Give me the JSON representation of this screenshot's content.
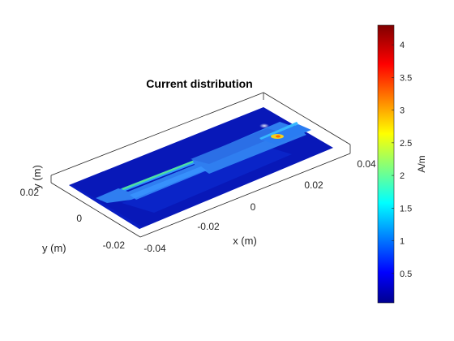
{
  "chart_data": {
    "type": "surface-3d",
    "title": "Current distribution",
    "xlabel": "x (m)",
    "ylabel": "y (m)",
    "x_ticks": [
      "-0.04",
      "-0.02",
      "0",
      "0.02",
      "0.04"
    ],
    "y_ticks": [
      "-0.02",
      "0",
      "0.02"
    ],
    "colorbar": {
      "label": "A/m",
      "colormap": "jet",
      "range": [
        0.05,
        4.3
      ],
      "ticks": [
        "0.5",
        "1",
        "1.5",
        "2",
        "2.5",
        "3",
        "3.5",
        "4"
      ],
      "tick_values": [
        0.5,
        1,
        1.5,
        2,
        2.5,
        3,
        3.5,
        4
      ]
    },
    "values": {
      "ground_plane": 0.1,
      "feed_line": 1.0,
      "narrow_stub": 2.0,
      "wide_patch": 1.3,
      "hot_spot": 3.2,
      "max": 4.3
    }
  }
}
